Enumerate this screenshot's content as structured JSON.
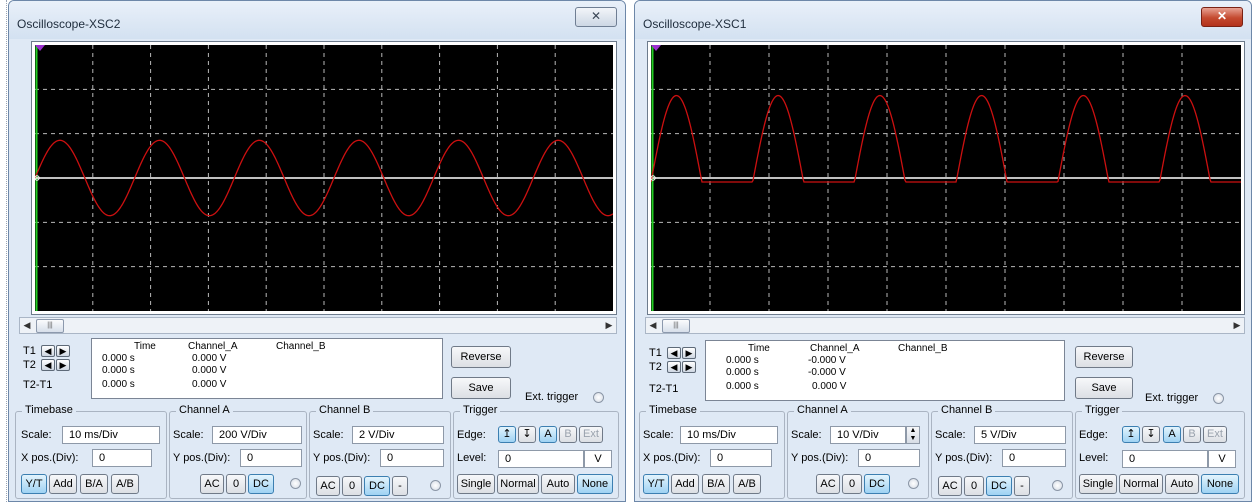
{
  "scopes": [
    {
      "title": "Oscilloscope-XSC2",
      "close_glyph": "✕",
      "cursor_rows": [
        {
          "label": "T1",
          "time": "0.000 s",
          "channel_a": "0.000 V",
          "channel_b": ""
        },
        {
          "label": "T2",
          "time": "0.000 s",
          "channel_a": "0.000 V",
          "channel_b": ""
        },
        {
          "label": "T2-T1",
          "time": "0.000 s",
          "channel_a": "0.000 V",
          "channel_b": ""
        }
      ],
      "col_time": "Time",
      "col_a": "Channel_A",
      "col_b": "Channel_B",
      "reverse": "Reverse",
      "save": "Save",
      "ext_trigger": "Ext. trigger",
      "timebase": {
        "title": "Timebase",
        "scale_label": "Scale:",
        "scale": "10 ms/Div",
        "pos_label": "X pos.(Div):",
        "pos": "0",
        "modes": [
          "Y/T",
          "Add",
          "B/A",
          "A/B"
        ],
        "selected_mode": "Y/T"
      },
      "channel_a": {
        "title": "Channel A",
        "scale_label": "Scale:",
        "scale": "200  V/Div",
        "pos_label": "Y pos.(Div):",
        "pos": "0",
        "coupling": [
          "AC",
          "0",
          "DC"
        ],
        "selected": "DC"
      },
      "channel_b": {
        "title": "Channel B",
        "scale_label": "Scale:",
        "scale": "2  V/Div",
        "pos_label": "Y pos.(Div):",
        "pos": "0",
        "coupling": [
          "AC",
          "0",
          "DC",
          "-"
        ],
        "selected": "DC"
      },
      "trigger": {
        "title": "Trigger",
        "edge_label": "Edge:",
        "edge_buttons": [
          "↥",
          "↧",
          "A",
          "B",
          "Ext"
        ],
        "level_label": "Level:",
        "level": "0",
        "level_unit": "V",
        "modes": [
          "Single",
          "Normal",
          "Auto",
          "None"
        ],
        "selected_mode": "None"
      },
      "waveform": {
        "shape": "sine",
        "cycles_visible": 5.8,
        "amplitude_div": 0.85,
        "trace_color": "#cc1010",
        "baseline_color": "#ffffff"
      }
    },
    {
      "title": "Oscilloscope-XSC1",
      "close_glyph": "✕",
      "cursor_rows": [
        {
          "label": "T1",
          "time": "0.000 s",
          "channel_a": "-0.000 V",
          "channel_b": ""
        },
        {
          "label": "T2",
          "time": "0.000 s",
          "channel_a": "-0.000 V",
          "channel_b": ""
        },
        {
          "label": "T2-T1",
          "time": "0.000 s",
          "channel_a": "0.000 V",
          "channel_b": ""
        }
      ],
      "col_time": "Time",
      "col_a": "Channel_A",
      "col_b": "Channel_B",
      "reverse": "Reverse",
      "save": "Save",
      "ext_trigger": "Ext. trigger",
      "timebase": {
        "title": "Timebase",
        "scale_label": "Scale:",
        "scale": "10 ms/Div",
        "pos_label": "X pos.(Div):",
        "pos": "0",
        "modes": [
          "Y/T",
          "Add",
          "B/A",
          "A/B"
        ],
        "selected_mode": "Y/T"
      },
      "channel_a": {
        "title": "Channel A",
        "scale_label": "Scale:",
        "scale": "10  V/Div",
        "pos_label": "Y pos.(Div):",
        "pos": "0",
        "coupling": [
          "AC",
          "0",
          "DC"
        ],
        "selected": "DC"
      },
      "channel_b": {
        "title": "Channel B",
        "scale_label": "Scale:",
        "scale": "5  V/Div",
        "pos_label": "Y pos.(Div):",
        "pos": "0",
        "coupling": [
          "AC",
          "0",
          "DC",
          "-"
        ],
        "selected": "DC"
      },
      "trigger": {
        "title": "Trigger",
        "edge_label": "Edge:",
        "edge_buttons": [
          "↥",
          "↧",
          "A",
          "B",
          "Ext"
        ],
        "level_label": "Level:",
        "level": "0",
        "level_unit": "V",
        "modes": [
          "Single",
          "Normal",
          "Auto",
          "None"
        ],
        "selected_mode": "None"
      },
      "waveform": {
        "shape": "half-wave rectified sine",
        "cycles_visible": 5.8,
        "amplitude_div": 1.95,
        "trace_color": "#cc1010",
        "baseline_color": "#ffffff"
      }
    }
  ],
  "colors": {
    "screen": "#000000",
    "grid": "#b8b8b8",
    "time_axis_marker": "#22cc22",
    "marker": "#9b2fcf",
    "selected_button": "#9fd2f3"
  }
}
